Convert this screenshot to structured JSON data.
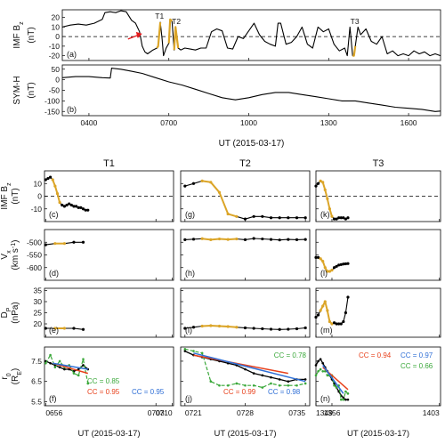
{
  "chart_data": [
    {
      "type": "line",
      "panel": "(a)",
      "ylabel": "IMF B",
      "ylabel_sub": "z",
      "unit": "(nT)",
      "xlim": [
        300,
        1720
      ],
      "ylim": [
        -25,
        28
      ],
      "yticks": [
        20,
        10,
        0,
        -10,
        -20
      ],
      "xticks": [],
      "dashed_zero": true,
      "series": [
        {
          "x": [
            300,
            330,
            360,
            390,
            420,
            450,
            460,
            480,
            500,
            520,
            540,
            560,
            575,
            590,
            600,
            610,
            620,
            640,
            655,
            660,
            668,
            675,
            680,
            690,
            700,
            705,
            712,
            720,
            725,
            735,
            745,
            752,
            760,
            780,
            800,
            820,
            840,
            860,
            880,
            900,
            920,
            940,
            960,
            980,
            1000,
            1020,
            1040,
            1060,
            1080,
            1100,
            1110,
            1120,
            1140,
            1160,
            1180,
            1200,
            1220,
            1240,
            1260,
            1280,
            1300,
            1320,
            1340,
            1360,
            1370,
            1380,
            1390,
            1395,
            1400,
            1410,
            1420,
            1440,
            1460,
            1480,
            1500,
            1520,
            1540,
            1560,
            1580,
            1600,
            1620,
            1640,
            1660,
            1680,
            1700,
            1720
          ],
          "y": [
            10,
            12,
            13,
            12,
            14,
            18,
            25,
            26,
            25,
            27,
            26,
            17,
            14,
            5,
            -10,
            -16,
            -18,
            -14,
            -12,
            -10,
            15,
            -3,
            -20,
            -12,
            -7,
            18,
            16,
            -14,
            10,
            -12,
            -14,
            -13,
            -12,
            -13,
            -14,
            -12,
            -12,
            5,
            8,
            6,
            -12,
            -13,
            0,
            -2,
            6,
            14,
            2,
            -5,
            -8,
            -10,
            14,
            14,
            -8,
            -6,
            0,
            10,
            -8,
            -12,
            10,
            5,
            8,
            -8,
            -15,
            -12,
            -20,
            10,
            -20,
            -20,
            -10,
            10,
            2,
            8,
            -5,
            -8,
            0,
            -18,
            -15,
            -20,
            -18,
            -20,
            -15,
            -18,
            -16,
            -20,
            -18,
            -20
          ]
        }
      ],
      "highlights": [
        [
          655,
          668
        ],
        [
          700,
          712
        ],
        [
          720,
          735
        ],
        [
          1389,
          1403
        ]
      ],
      "labels": [
        "T1",
        "T2",
        "T3"
      ],
      "arrow_at": [
        600,
        3
      ]
    },
    {
      "type": "line",
      "panel": "(b)",
      "ylabel": "SYM-H",
      "unit": "(nT)",
      "xlim": [
        300,
        1720
      ],
      "ylim": [
        -170,
        70
      ],
      "yticks": [
        50,
        0,
        -50,
        -100,
        -150
      ],
      "xticks": [
        400,
        700,
        1000,
        1300,
        1600
      ],
      "xticklabels": [
        "0400",
        "0700",
        "1000",
        "1300",
        "1600"
      ],
      "xlabel": "UT (2015-03-17)",
      "series": [
        {
          "x": [
            300,
            350,
            400,
            450,
            480,
            485,
            520,
            560,
            600,
            650,
            700,
            750,
            800,
            850,
            900,
            950,
            1000,
            1050,
            1100,
            1150,
            1200,
            1250,
            1300,
            1350,
            1400,
            1450,
            1500,
            1550,
            1600,
            1650,
            1700,
            1720
          ],
          "y": [
            10,
            15,
            15,
            10,
            8,
            55,
            50,
            40,
            30,
            10,
            -10,
            -25,
            -45,
            -65,
            -85,
            -95,
            -85,
            -70,
            -60,
            -60,
            -70,
            -80,
            -90,
            -100,
            -100,
            -110,
            -120,
            -130,
            -135,
            -140,
            -150,
            -148
          ]
        }
      ]
    },
    {
      "column": "T1",
      "xlim": [
        655.5,
        710.5
      ],
      "xticks": [
        656,
        703,
        710
      ],
      "xticklabels": [
        "0656",
        "0703",
        "0710"
      ],
      "highlight": [
        659,
        701
      ],
      "bz": {
        "panel": "(c)",
        "x": [
          656,
          657,
          658,
          659,
          660,
          661,
          662,
          663,
          664,
          665,
          666,
          667,
          668,
          669,
          670,
          671,
          672,
          673,
          674
        ],
        "y": [
          13,
          14,
          15,
          13,
          8,
          2,
          -5,
          -7,
          -8,
          -7,
          -6,
          -7,
          -8,
          -8,
          -9,
          -9,
          -10,
          -11,
          -11
        ],
        "hl": [
          3,
          6
        ]
      },
      "vx": {
        "panel": "(d)",
        "x": [
          656,
          660,
          664,
          668,
          672
        ],
        "y": [
          -510,
          -505,
          -505,
          -500,
          -500
        ],
        "hl": [
          1,
          2
        ]
      },
      "dp": {
        "panel": "(e)",
        "x": [
          656,
          660,
          664,
          668,
          672
        ],
        "y": [
          18,
          18,
          18,
          18,
          17.5
        ],
        "hl": [
          1,
          2
        ]
      },
      "r0": {
        "panel": "(f)",
        "black": {
          "x": [
            656,
            658,
            660,
            662,
            664,
            666,
            668,
            670,
            672,
            674
          ],
          "y": [
            7.5,
            7.4,
            7.3,
            7.2,
            7.1,
            7.1,
            7.0,
            7.1,
            7.3,
            7.1
          ]
        },
        "green": {
          "x": [
            656,
            658,
            660,
            662,
            664,
            666,
            668,
            670,
            672,
            674
          ],
          "y": [
            7.4,
            7.8,
            7.2,
            7.5,
            7.2,
            7.3,
            6.9,
            6.8,
            7.6,
            6.4
          ]
        },
        "red": [
          [
            659,
            7.4
          ],
          [
            674,
            6.9
          ]
        ],
        "blue": [
          [
            659,
            7.4
          ],
          [
            674,
            7.1
          ]
        ]
      },
      "cc": [
        {
          "text": "CC = 0.85",
          "color": "green"
        },
        {
          "text": "CC = 0.95",
          "color": "red"
        },
        {
          "text": "CC = 0.95",
          "color": "blue"
        }
      ]
    },
    {
      "column": "T2",
      "xlim": [
        720.5,
        735.5
      ],
      "xticks": [
        721,
        728,
        735
      ],
      "xticklabels": [
        "0721",
        "0728",
        "0735"
      ],
      "highlight": [
        722,
        726
      ],
      "bz": {
        "panel": "(g)",
        "x": [
          721,
          722,
          723,
          724,
          725,
          726,
          727,
          728,
          729,
          730,
          731,
          732,
          733,
          734,
          735
        ],
        "y": [
          8,
          10,
          12,
          11,
          3,
          -14,
          -16,
          -18,
          -16,
          -16,
          -17,
          -17,
          -17,
          -17,
          -17
        ],
        "hl": [
          2,
          6
        ]
      },
      "vx": {
        "panel": "(h)",
        "x": [
          721,
          722,
          723,
          724,
          725,
          726,
          727,
          728,
          729,
          730,
          731,
          732,
          733,
          734,
          735
        ],
        "y": [
          -490,
          -488,
          -486,
          -490,
          -487,
          -489,
          -487,
          -490,
          -485,
          -487,
          -489,
          -491,
          -489,
          -490,
          -489
        ],
        "hl": [
          2,
          6
        ]
      },
      "dp": {
        "panel": "(i)",
        "x": [
          721,
          722,
          723,
          724,
          725,
          726,
          727,
          728,
          729,
          730,
          731,
          732,
          733,
          734,
          735
        ],
        "y": [
          18,
          18.5,
          19,
          19.2,
          19,
          18.8,
          18.5,
          18.2,
          18,
          17.8,
          17.6,
          17.5,
          17.6,
          17.8,
          18.2
        ],
        "hl": [
          2,
          6
        ]
      },
      "r0": {
        "panel": "(j)",
        "black": {
          "x": [
            721,
            722,
            723,
            724,
            725,
            726,
            727,
            728,
            729,
            730,
            731,
            732,
            733,
            734,
            735
          ],
          "y": [
            8.0,
            7.8,
            7.7,
            7.6,
            7.5,
            7.4,
            7.3,
            7.1,
            6.9,
            6.8,
            6.7,
            6.6,
            6.5,
            6.6,
            6.6
          ]
        },
        "green": {
          "x": [
            721,
            722,
            723,
            724,
            725,
            726,
            727,
            728,
            729,
            730,
            731,
            732,
            733,
            734,
            735
          ],
          "y": [
            8.1,
            8.0,
            7.9,
            6.5,
            6.3,
            6.3,
            6.4,
            6.3,
            6.3,
            6.2,
            6.4,
            6.3,
            6.3,
            6.3,
            6.4
          ]
        },
        "red": [
          [
            722,
            7.8
          ],
          [
            733,
            6.9
          ]
        ],
        "blue": [
          [
            722,
            7.9
          ],
          [
            735,
            6.5
          ]
        ]
      },
      "cc": [
        {
          "text": "CC = 0.78",
          "color": "green"
        },
        {
          "text": "CC = 0.99",
          "color": "red"
        },
        {
          "text": "CC = 0.98",
          "color": "blue"
        }
      ]
    },
    {
      "column": "T3",
      "xlim": [
        1349,
        1403.5
      ],
      "xticks": [
        1349,
        1356,
        1403
      ],
      "xticklabels": [
        "1349",
        "1356",
        "1403"
      ],
      "highlight": [
        1352,
        1357
      ],
      "bz": {
        "panel": "(k)",
        "x": [
          1349,
          1350,
          1351,
          1352,
          1353,
          1354,
          1355,
          1356,
          1357,
          1358,
          1359,
          1360,
          1361,
          1362,
          1363
        ],
        "y": [
          8,
          10,
          12,
          11,
          5,
          -2,
          -10,
          -16,
          -18,
          -18,
          -17,
          -17,
          -17,
          -18,
          -17
        ],
        "hl": [
          2,
          7
        ]
      },
      "vx": {
        "panel": "(l)",
        "x": [
          1349,
          1350,
          1351,
          1352,
          1353,
          1354,
          1355,
          1356,
          1357,
          1358,
          1359,
          1360,
          1361,
          1362,
          1363
        ],
        "y": [
          -560,
          -560,
          -565,
          -575,
          -600,
          -615,
          -615,
          -610,
          -600,
          -595,
          -590,
          -588,
          -586,
          -585,
          -584
        ],
        "hl": [
          2,
          7
        ]
      },
      "dp": {
        "panel": "(m)",
        "x": [
          1349,
          1350,
          1351,
          1352,
          1353,
          1354,
          1355,
          1356,
          1357,
          1358,
          1359,
          1360,
          1361,
          1362,
          1363
        ],
        "y": [
          23,
          24,
          26,
          28,
          30,
          26,
          21,
          20,
          20.5,
          20,
          20,
          20,
          21,
          25,
          32
        ],
        "hl": [
          2,
          7
        ]
      },
      "r0": {
        "panel": "(n)",
        "black": {
          "x": [
            1349,
            1350,
            1351,
            1352,
            1353,
            1354,
            1355,
            1356,
            1357,
            1358,
            1359,
            1360,
            1361,
            1362,
            1363
          ],
          "y": [
            7.3,
            7.5,
            7.6,
            7.4,
            7.2,
            7.0,
            6.8,
            6.6,
            6.4,
            6.2,
            6.0,
            5.8,
            5.7,
            5.6,
            5.6
          ]
        },
        "green": {
          "x": [
            1349,
            1350,
            1351,
            1352,
            1353,
            1354,
            1355,
            1356,
            1357,
            1358,
            1359,
            1360,
            1361,
            1362,
            1363
          ],
          "y": [
            6.8,
            7.0,
            7.1,
            7.0,
            7.0,
            6.8,
            6.8,
            6.8,
            6.3,
            6.2,
            6.3,
            5.6,
            5.6,
            6.0,
            5.9
          ]
        },
        "red": [
          [
            1352,
            7.2
          ],
          [
            1363,
            6.1
          ]
        ],
        "blue": [
          [
            1352,
            7.3
          ],
          [
            1361,
            5.9
          ]
        ]
      },
      "cc": [
        {
          "text": "CC = 0.94",
          "color": "red"
        },
        {
          "text": "CC = 0.97",
          "color": "blue"
        },
        {
          "text": "CC = 0.66",
          "color": "green"
        }
      ]
    }
  ],
  "rows": {
    "bz": {
      "ylabel": "IMF B",
      "sub": "z",
      "unit": "(nT)",
      "ylim": [
        -20,
        20
      ],
      "yticks": [
        10,
        0,
        -10
      ],
      "dashed_zero": true
    },
    "vx": {
      "ylabel": "V",
      "sub": "x",
      "unit": "(km s",
      "unit_sup": "-1",
      "unit_close": ")",
      "ylim": [
        -650,
        -450
      ],
      "yticks": [
        -500,
        -550,
        -600
      ]
    },
    "dp": {
      "ylabel": "D",
      "sub": "P",
      "unit": "(nPa)",
      "ylim": [
        14,
        36
      ],
      "yticks": [
        35,
        30,
        25,
        20
      ]
    },
    "r0": {
      "ylabel": "r",
      "sub": "0",
      "unit": "(R",
      "unit_sub": "E",
      "unit_close": ")",
      "ylim": [
        5.3,
        8.2
      ],
      "yticks": [
        7.5,
        6.5,
        5.5
      ]
    }
  },
  "bottom_xlabel": "UT (2015-03-17)",
  "colors": {
    "line": "#000000",
    "highlight": "#dba528",
    "red": "#e8421d",
    "blue": "#2f6fd6",
    "green": "#3aa83a",
    "arrow": "#e41a1c"
  }
}
